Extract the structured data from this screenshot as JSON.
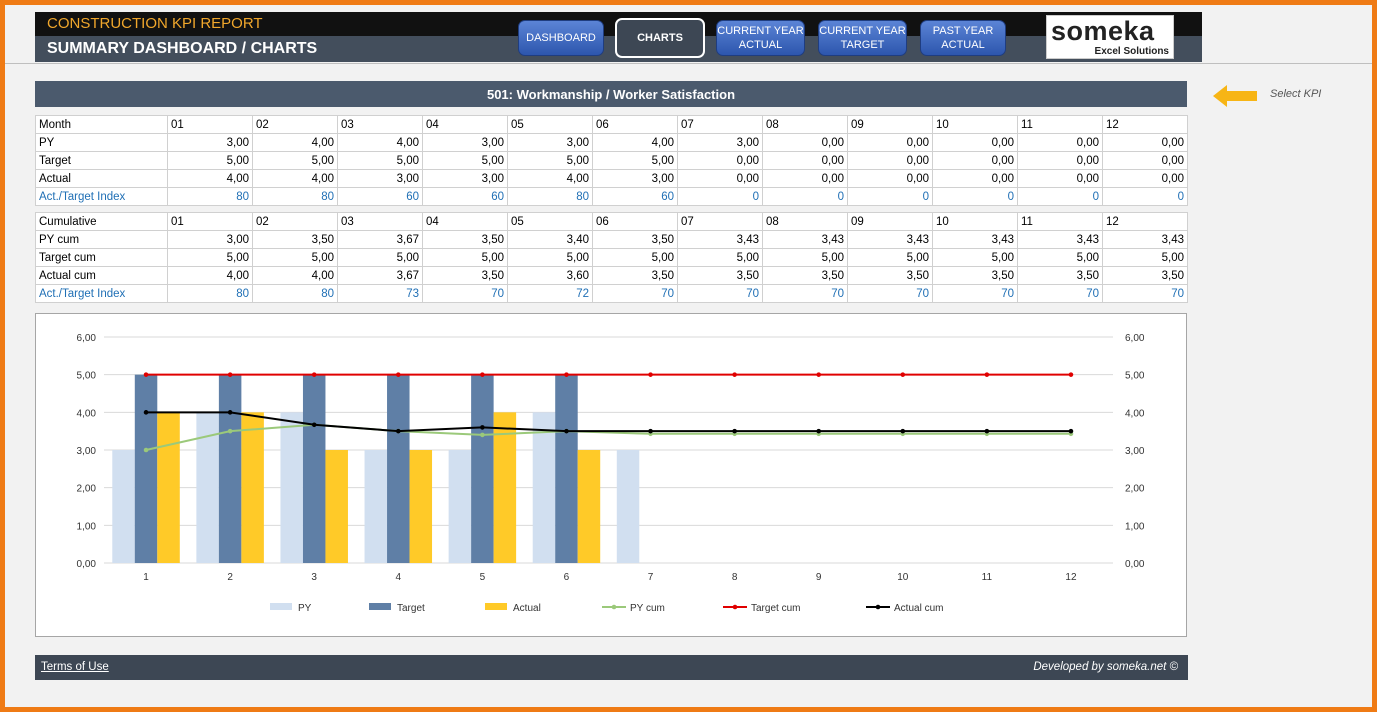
{
  "header": {
    "report_title": "CONSTRUCTION KPI REPORT",
    "page_title": "SUMMARY DASHBOARD / CHARTS"
  },
  "nav": {
    "dashboard": "DASHBOARD",
    "charts": "CHARTS",
    "current_year_actual": "CURRENT YEAR ACTUAL",
    "current_year_target": "CURRENT YEAR TARGET",
    "past_year_actual": "PAST YEAR ACTUAL"
  },
  "logo": {
    "main": "someka",
    "sub": "Excel Solutions"
  },
  "kpi": {
    "title": "501: Workmanship / Worker Satisfaction",
    "select_hint": "Select KPI"
  },
  "monthly_table": {
    "header": [
      "Month",
      "01",
      "02",
      "03",
      "04",
      "05",
      "06",
      "07",
      "08",
      "09",
      "10",
      "11",
      "12"
    ],
    "rows": [
      [
        "PY",
        "3,00",
        "4,00",
        "4,00",
        "3,00",
        "3,00",
        "4,00",
        "3,00",
        "0,00",
        "0,00",
        "0,00",
        "0,00",
        "0,00"
      ],
      [
        "Target",
        "5,00",
        "5,00",
        "5,00",
        "5,00",
        "5,00",
        "5,00",
        "0,00",
        "0,00",
        "0,00",
        "0,00",
        "0,00",
        "0,00"
      ],
      [
        "Actual",
        "4,00",
        "4,00",
        "3,00",
        "3,00",
        "4,00",
        "3,00",
        "0,00",
        "0,00",
        "0,00",
        "0,00",
        "0,00",
        "0,00"
      ],
      [
        "Act./Target Index",
        "80",
        "80",
        "60",
        "60",
        "80",
        "60",
        "0",
        "0",
        "0",
        "0",
        "0",
        "0"
      ]
    ]
  },
  "cumulative_table": {
    "header": [
      "Cumulative",
      "01",
      "02",
      "03",
      "04",
      "05",
      "06",
      "07",
      "08",
      "09",
      "10",
      "11",
      "12"
    ],
    "rows": [
      [
        "PY cum",
        "3,00",
        "3,50",
        "3,67",
        "3,50",
        "3,40",
        "3,50",
        "3,43",
        "3,43",
        "3,43",
        "3,43",
        "3,43",
        "3,43"
      ],
      [
        "Target cum",
        "5,00",
        "5,00",
        "5,00",
        "5,00",
        "5,00",
        "5,00",
        "5,00",
        "5,00",
        "5,00",
        "5,00",
        "5,00",
        "5,00"
      ],
      [
        "Actual cum",
        "4,00",
        "4,00",
        "3,67",
        "3,50",
        "3,60",
        "3,50",
        "3,50",
        "3,50",
        "3,50",
        "3,50",
        "3,50",
        "3,50"
      ],
      [
        "Act./Target Index",
        "80",
        "80",
        "73",
        "70",
        "72",
        "70",
        "70",
        "70",
        "70",
        "70",
        "70",
        "70"
      ]
    ]
  },
  "chart_data": {
    "type": "bar",
    "categories": [
      "1",
      "2",
      "3",
      "4",
      "5",
      "6",
      "7",
      "8",
      "9",
      "10",
      "11",
      "12"
    ],
    "ylim": [
      0,
      6
    ],
    "yticks": [
      "0,00",
      "1,00",
      "2,00",
      "3,00",
      "4,00",
      "5,00",
      "6,00"
    ],
    "grid": true,
    "legend": "bottom",
    "bar_series": [
      {
        "name": "PY",
        "color": "#d1dff0",
        "values": [
          3,
          4,
          4,
          3,
          3,
          4,
          3,
          0,
          0,
          0,
          0,
          0
        ]
      },
      {
        "name": "Target",
        "color": "#5f7fa6",
        "values": [
          5,
          5,
          5,
          5,
          5,
          5,
          0,
          0,
          0,
          0,
          0,
          0
        ]
      },
      {
        "name": "Actual",
        "color": "#ffca28",
        "values": [
          4,
          4,
          3,
          3,
          4,
          3,
          0,
          0,
          0,
          0,
          0,
          0
        ]
      }
    ],
    "line_series": [
      {
        "name": "PY cum",
        "color": "#9bc97a",
        "values": [
          3.0,
          3.5,
          3.67,
          3.5,
          3.4,
          3.5,
          3.43,
          3.43,
          3.43,
          3.43,
          3.43,
          3.43
        ]
      },
      {
        "name": "Target cum",
        "color": "#e00000",
        "values": [
          5,
          5,
          5,
          5,
          5,
          5,
          5,
          5,
          5,
          5,
          5,
          5
        ]
      },
      {
        "name": "Actual cum",
        "color": "#000000",
        "values": [
          4.0,
          4.0,
          3.67,
          3.5,
          3.6,
          3.5,
          3.5,
          3.5,
          3.5,
          3.5,
          3.5,
          3.5
        ]
      }
    ]
  },
  "footer": {
    "terms": "Terms of Use",
    "developed_by": "Developed by someka.net ©"
  }
}
